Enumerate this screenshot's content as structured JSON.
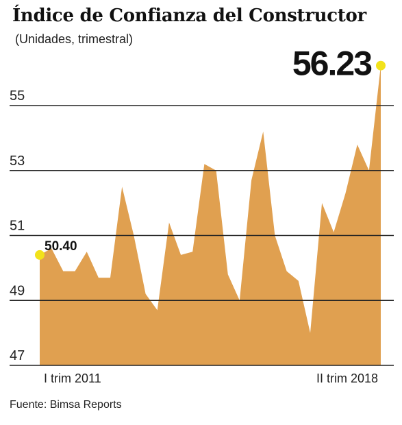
{
  "title": "Índice de Confianza del Constructor",
  "subtitle": "(Unidades, trimestral)",
  "source": "Fuente: Bimsa Reports",
  "colors": {
    "area": "#E0A050",
    "highlight": "#F2E21A",
    "gridline": "#222222"
  },
  "chart_data": {
    "type": "area",
    "title": "Índice de Confianza del Constructor",
    "subtitle": "(Unidades, trimestral)",
    "x_tick_labels": [
      "I trim 2011",
      "II trim 2018"
    ],
    "y_ticks": [
      47,
      49,
      51,
      53,
      55
    ],
    "ylim": [
      47,
      56.23
    ],
    "grid": true,
    "values": [
      50.4,
      50.6,
      49.9,
      49.9,
      50.5,
      49.7,
      49.7,
      52.5,
      51.0,
      49.2,
      48.7,
      51.4,
      50.4,
      50.5,
      53.2,
      53.0,
      49.8,
      49.0,
      52.7,
      54.2,
      51.0,
      49.9,
      49.6,
      48.0,
      52.0,
      51.1,
      52.3,
      53.8,
      53.0,
      56.23
    ],
    "data_labels": [
      {
        "index": 0,
        "text": "50.40"
      },
      {
        "index": 29,
        "text": "56.23"
      }
    ]
  }
}
